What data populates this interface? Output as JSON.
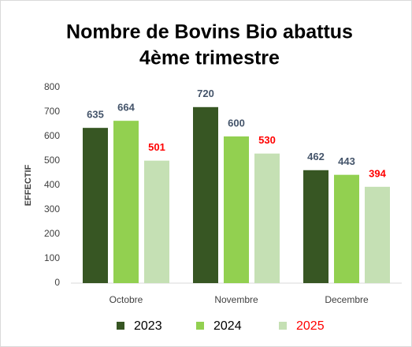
{
  "chart_data": {
    "type": "bar",
    "title": "Nombre de Bovins Bio abattus",
    "subtitle": "4ème trimestre",
    "y_label": "EFFECTIF",
    "categories": [
      "Octobre",
      "Novembre",
      "Decembre"
    ],
    "series": [
      {
        "name": "2023",
        "color": "#375623",
        "label_color": "#44546a",
        "values": [
          635,
          720,
          462
        ]
      },
      {
        "name": "2024",
        "color": "#92d050",
        "label_color": "#44546a",
        "values": [
          664,
          600,
          443
        ]
      },
      {
        "name": "2025",
        "color": "#c5e0b4",
        "label_color": "#ff0000",
        "values": [
          501,
          530,
          394
        ]
      }
    ],
    "ylim": [
      0,
      800
    ],
    "yticks": [
      0,
      100,
      200,
      300,
      400,
      500,
      600,
      700,
      800
    ],
    "grid": false,
    "legend": "bottom"
  }
}
